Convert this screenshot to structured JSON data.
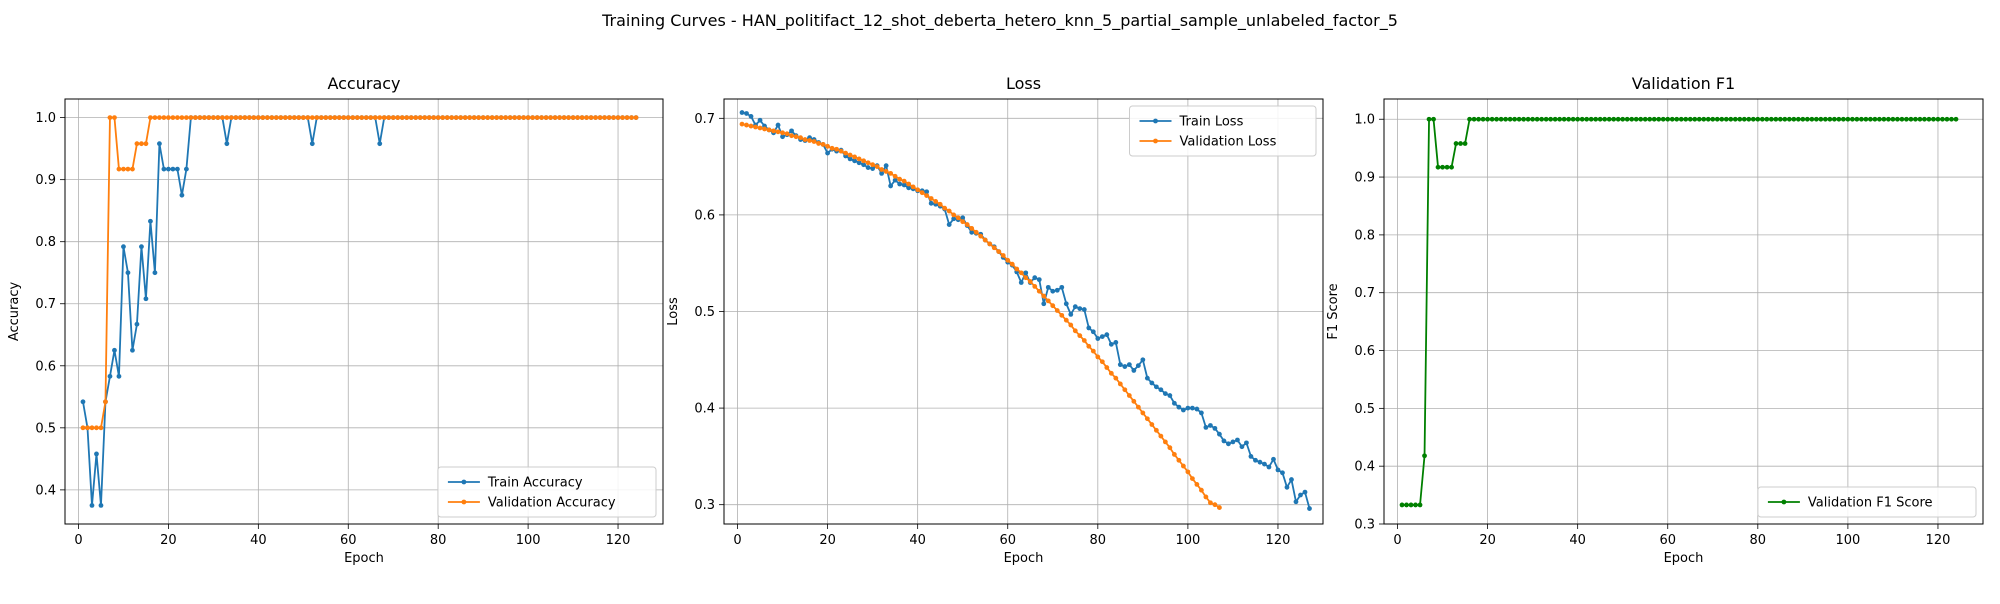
{
  "figure": {
    "suptitle": "Training Curves - HAN_politifact_12_shot_deberta_hetero_knn_5_partial_sample_unlabeled_factor_5"
  },
  "colors": {
    "blue": "#1f77b4",
    "orange": "#ff7f0e",
    "green": "#008000",
    "grid": "#b0b0b0"
  },
  "chart_data": [
    {
      "type": "line",
      "title": "Accuracy",
      "xlabel": "Epoch",
      "ylabel": "Accuracy",
      "xlim": [
        -3,
        130
      ],
      "ylim": [
        0.345,
        1.03
      ],
      "xticks": [
        0,
        20,
        40,
        60,
        80,
        100,
        120
      ],
      "yticks": [
        0.4,
        0.5,
        0.6,
        0.7,
        0.8,
        0.9,
        1.0
      ],
      "tick_format": 1,
      "grid": true,
      "legend": "lower-right",
      "series": [
        {
          "name": "Train Accuracy",
          "color": "#1f77b4",
          "x_start": 1,
          "values": [
            0.542,
            0.5,
            0.375,
            0.458,
            0.375,
            0.542,
            0.583,
            0.625,
            0.583,
            0.792,
            0.75,
            0.625,
            0.667,
            0.792,
            0.708,
            0.833,
            0.75,
            0.958,
            0.917,
            0.917,
            0.917,
            0.917,
            0.875,
            0.917,
            1.0,
            1.0,
            1.0,
            1.0,
            1.0,
            1.0,
            1.0,
            1.0,
            0.958,
            1.0,
            1.0,
            1.0,
            1.0,
            1.0,
            1.0,
            1.0,
            1.0,
            1.0,
            1.0,
            1.0,
            1.0,
            1.0,
            1.0,
            1.0,
            1.0,
            1.0,
            1.0,
            0.958,
            1.0,
            1.0,
            1.0,
            1.0,
            1.0,
            1.0,
            1.0,
            1.0,
            1.0,
            1.0,
            1.0,
            1.0,
            1.0,
            1.0,
            0.958,
            1.0,
            1.0,
            1.0,
            1.0,
            1.0,
            1.0,
            1.0,
            1.0,
            1.0,
            1.0,
            1.0,
            1.0,
            1.0,
            1.0,
            1.0,
            1.0,
            1.0,
            1.0,
            1.0,
            1.0,
            1.0,
            1.0,
            1.0,
            1.0,
            1.0,
            1.0,
            1.0,
            1.0,
            1.0,
            1.0,
            1.0,
            1.0,
            1.0,
            1.0,
            1.0,
            1.0,
            1.0,
            1.0,
            1.0,
            1.0,
            1.0,
            1.0,
            1.0,
            1.0,
            1.0,
            1.0,
            1.0,
            1.0,
            1.0,
            1.0,
            1.0,
            1.0,
            1.0,
            1.0,
            1.0,
            1.0,
            1.0
          ]
        },
        {
          "name": "Validation Accuracy",
          "color": "#ff7f0e",
          "x_start": 1,
          "values": [
            0.5,
            0.5,
            0.5,
            0.5,
            0.5,
            0.542,
            1.0,
            1.0,
            0.917,
            0.917,
            0.917,
            0.917,
            0.958,
            0.958,
            0.958,
            1.0,
            1.0,
            1.0,
            1.0,
            1.0,
            1.0,
            1.0,
            1.0,
            1.0,
            1.0,
            1.0,
            1.0,
            1.0,
            1.0,
            1.0,
            1.0,
            1.0,
            1.0,
            1.0,
            1.0,
            1.0,
            1.0,
            1.0,
            1.0,
            1.0,
            1.0,
            1.0,
            1.0,
            1.0,
            1.0,
            1.0,
            1.0,
            1.0,
            1.0,
            1.0,
            1.0,
            1.0,
            1.0,
            1.0,
            1.0,
            1.0,
            1.0,
            1.0,
            1.0,
            1.0,
            1.0,
            1.0,
            1.0,
            1.0,
            1.0,
            1.0,
            1.0,
            1.0,
            1.0,
            1.0,
            1.0,
            1.0,
            1.0,
            1.0,
            1.0,
            1.0,
            1.0,
            1.0,
            1.0,
            1.0,
            1.0,
            1.0,
            1.0,
            1.0,
            1.0,
            1.0,
            1.0,
            1.0,
            1.0,
            1.0,
            1.0,
            1.0,
            1.0,
            1.0,
            1.0,
            1.0,
            1.0,
            1.0,
            1.0,
            1.0,
            1.0,
            1.0,
            1.0,
            1.0,
            1.0,
            1.0,
            1.0,
            1.0,
            1.0,
            1.0,
            1.0,
            1.0,
            1.0,
            1.0,
            1.0,
            1.0,
            1.0,
            1.0,
            1.0,
            1.0,
            1.0,
            1.0,
            1.0,
            1.0
          ]
        }
      ]
    },
    {
      "type": "line",
      "title": "Loss",
      "xlabel": "Epoch",
      "ylabel": "Loss",
      "xlim": [
        -3,
        130
      ],
      "ylim": [
        0.28,
        0.72
      ],
      "xticks": [
        0,
        20,
        40,
        60,
        80,
        100,
        120
      ],
      "yticks": [
        0.3,
        0.4,
        0.5,
        0.6,
        0.7
      ],
      "tick_format": 1,
      "grid": true,
      "legend": "upper-right",
      "series": [
        {
          "name": "Train Loss",
          "color": "#1f77b4",
          "x_start": 1,
          "values": [
            0.706,
            0.705,
            0.702,
            0.693,
            0.698,
            0.692,
            0.688,
            0.685,
            0.693,
            0.681,
            0.683,
            0.687,
            0.682,
            0.678,
            0.677,
            0.68,
            0.678,
            0.675,
            0.673,
            0.664,
            0.668,
            0.666,
            0.667,
            0.661,
            0.658,
            0.656,
            0.654,
            0.652,
            0.649,
            0.648,
            0.651,
            0.643,
            0.651,
            0.63,
            0.636,
            0.632,
            0.631,
            0.628,
            0.627,
            0.625,
            0.625,
            0.624,
            0.612,
            0.611,
            0.609,
            0.606,
            0.59,
            0.596,
            0.595,
            0.597,
            0.589,
            0.582,
            0.581,
            0.58,
            0.574,
            0.57,
            0.567,
            0.562,
            0.556,
            0.551,
            0.548,
            0.541,
            0.53,
            0.54,
            0.53,
            0.535,
            0.533,
            0.508,
            0.525,
            0.521,
            0.522,
            0.525,
            0.508,
            0.497,
            0.505,
            0.503,
            0.502,
            0.483,
            0.479,
            0.472,
            0.474,
            0.476,
            0.466,
            0.468,
            0.445,
            0.443,
            0.445,
            0.439,
            0.444,
            0.45,
            0.431,
            0.426,
            0.422,
            0.419,
            0.415,
            0.413,
            0.405,
            0.401,
            0.398,
            0.4,
            0.4,
            0.399,
            0.395,
            0.38,
            0.382,
            0.379,
            0.373,
            0.366,
            0.363,
            0.365,
            0.367,
            0.36,
            0.364,
            0.35,
            0.346,
            0.344,
            0.342,
            0.339,
            0.347,
            0.336,
            0.333,
            0.318,
            0.326,
            0.303,
            0.31,
            0.313,
            0.296
          ]
        },
        {
          "name": "Validation Loss",
          "color": "#ff7f0e",
          "x_start": 1,
          "values": [
            0.694,
            0.693,
            0.692,
            0.691,
            0.69,
            0.689,
            0.688,
            0.687,
            0.686,
            0.685,
            0.684,
            0.682,
            0.681,
            0.68,
            0.678,
            0.677,
            0.676,
            0.674,
            0.673,
            0.671,
            0.669,
            0.668,
            0.666,
            0.664,
            0.662,
            0.66,
            0.658,
            0.656,
            0.654,
            0.652,
            0.65,
            0.647,
            0.645,
            0.643,
            0.64,
            0.637,
            0.635,
            0.632,
            0.629,
            0.626,
            0.623,
            0.62,
            0.617,
            0.614,
            0.611,
            0.607,
            0.604,
            0.6,
            0.597,
            0.593,
            0.59,
            0.586,
            0.582,
            0.578,
            0.574,
            0.57,
            0.566,
            0.562,
            0.558,
            0.553,
            0.549,
            0.544,
            0.54,
            0.535,
            0.531,
            0.526,
            0.521,
            0.516,
            0.511,
            0.506,
            0.501,
            0.496,
            0.491,
            0.486,
            0.48,
            0.475,
            0.47,
            0.464,
            0.459,
            0.453,
            0.448,
            0.442,
            0.436,
            0.431,
            0.425,
            0.419,
            0.413,
            0.407,
            0.401,
            0.395,
            0.389,
            0.383,
            0.377,
            0.371,
            0.365,
            0.359,
            0.352,
            0.346,
            0.34,
            0.334,
            0.327,
            0.321,
            0.315,
            0.308,
            0.302,
            0.3,
            0.297
          ]
        }
      ]
    },
    {
      "type": "line",
      "title": "Validation F1",
      "xlabel": "Epoch",
      "ylabel": "F1 Score",
      "xlim": [
        -3,
        130
      ],
      "ylim": [
        0.3,
        1.035
      ],
      "xticks": [
        0,
        20,
        40,
        60,
        80,
        100,
        120
      ],
      "yticks": [
        0.3,
        0.4,
        0.5,
        0.6,
        0.7,
        0.8,
        0.9,
        1.0
      ],
      "tick_format": 1,
      "grid": true,
      "legend": "lower-right",
      "series": [
        {
          "name": "Validation F1 Score",
          "color": "#008000",
          "x_start": 1,
          "values": [
            0.333,
            0.333,
            0.333,
            0.333,
            0.333,
            0.418,
            1.0,
            1.0,
            0.917,
            0.917,
            0.917,
            0.917,
            0.958,
            0.958,
            0.958,
            1.0,
            1.0,
            1.0,
            1.0,
            1.0,
            1.0,
            1.0,
            1.0,
            1.0,
            1.0,
            1.0,
            1.0,
            1.0,
            1.0,
            1.0,
            1.0,
            1.0,
            1.0,
            1.0,
            1.0,
            1.0,
            1.0,
            1.0,
            1.0,
            1.0,
            1.0,
            1.0,
            1.0,
            1.0,
            1.0,
            1.0,
            1.0,
            1.0,
            1.0,
            1.0,
            1.0,
            1.0,
            1.0,
            1.0,
            1.0,
            1.0,
            1.0,
            1.0,
            1.0,
            1.0,
            1.0,
            1.0,
            1.0,
            1.0,
            1.0,
            1.0,
            1.0,
            1.0,
            1.0,
            1.0,
            1.0,
            1.0,
            1.0,
            1.0,
            1.0,
            1.0,
            1.0,
            1.0,
            1.0,
            1.0,
            1.0,
            1.0,
            1.0,
            1.0,
            1.0,
            1.0,
            1.0,
            1.0,
            1.0,
            1.0,
            1.0,
            1.0,
            1.0,
            1.0,
            1.0,
            1.0,
            1.0,
            1.0,
            1.0,
            1.0,
            1.0,
            1.0,
            1.0,
            1.0,
            1.0,
            1.0,
            1.0,
            1.0,
            1.0,
            1.0,
            1.0,
            1.0,
            1.0,
            1.0,
            1.0,
            1.0,
            1.0,
            1.0,
            1.0,
            1.0,
            1.0,
            1.0,
            1.0,
            1.0
          ]
        }
      ]
    }
  ]
}
